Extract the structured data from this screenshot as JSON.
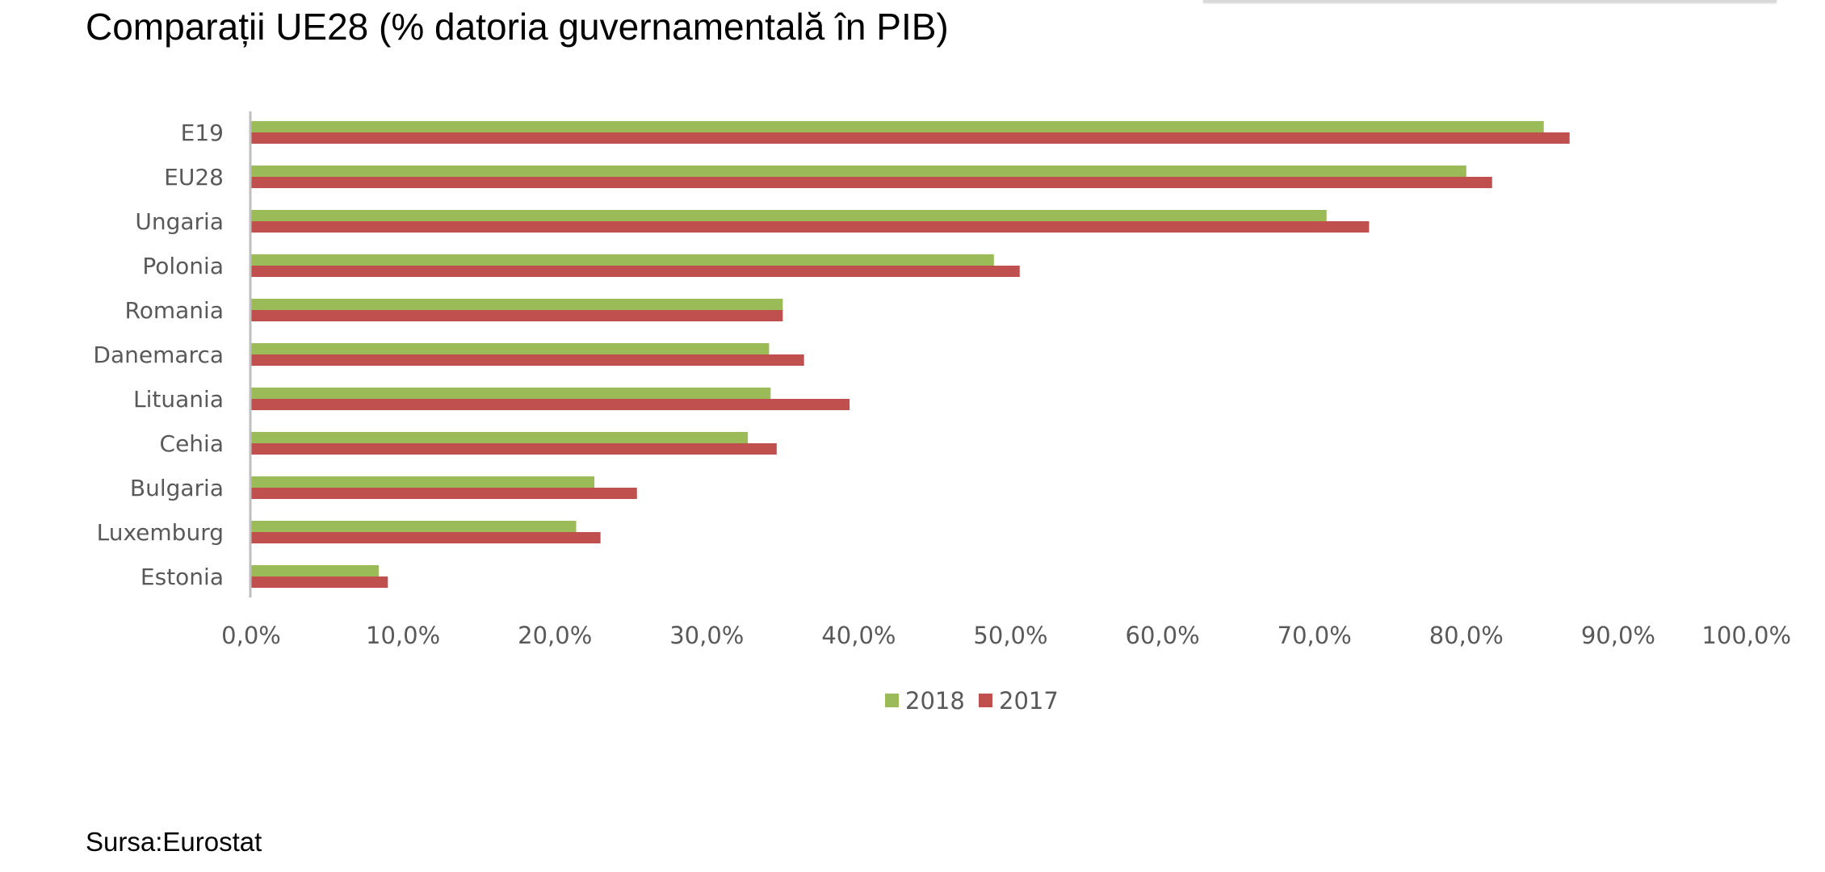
{
  "title": "Comparații UE28 (% datoria guvernamentală în PIB)",
  "source": "Sursa:Eurostat",
  "colors": {
    "2018": "#9bbb59",
    "2017": "#c0504d",
    "axis": "#bfbfbf",
    "text": "#595959"
  },
  "chart_data": {
    "type": "bar",
    "orientation": "horizontal",
    "title": "Comparații UE28 (% datoria guvernamentală în PIB)",
    "categories": [
      "E19",
      "EU28",
      "Ungaria",
      "Polonia",
      "Romania",
      "Danemarca",
      "Lituania",
      "Cehia",
      "Bulgaria",
      "Luxemburg",
      "Estonia"
    ],
    "series": [
      {
        "name": "2018",
        "values": [
          85.1,
          80.0,
          70.8,
          48.9,
          35.0,
          34.1,
          34.2,
          32.7,
          22.6,
          21.4,
          8.4
        ]
      },
      {
        "name": "2017",
        "values": [
          86.8,
          81.7,
          73.6,
          50.6,
          35.0,
          36.4,
          39.4,
          34.6,
          25.4,
          23.0,
          9.0
        ]
      }
    ],
    "xlim": [
      0,
      100
    ],
    "xticks": [
      "0,0%",
      "10,0%",
      "20,0%",
      "30,0%",
      "40,0%",
      "50,0%",
      "60,0%",
      "70,0%",
      "80,0%",
      "90,0%",
      "100,0%"
    ],
    "grid": false,
    "legend": "bottom-center"
  }
}
